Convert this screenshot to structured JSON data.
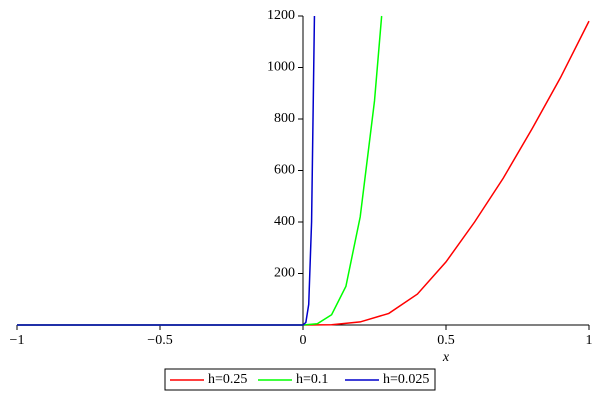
{
  "chart_data": {
    "type": "line",
    "xlabel": "x",
    "xlim": [
      -1,
      1
    ],
    "ylim": [
      0,
      1200
    ],
    "xticks": [
      {
        "value": -1,
        "label": "−1"
      },
      {
        "value": -0.5,
        "label": "−0.5"
      },
      0,
      0.5,
      1
    ],
    "yticks": [
      200,
      400,
      600,
      800,
      1000,
      1200
    ],
    "series": [
      {
        "name": "h=0.25",
        "color": "#ff0000",
        "x": [
          -1,
          0,
          0.1,
          0.2,
          0.3,
          0.4,
          0.5,
          0.6,
          0.7,
          0.8,
          0.9,
          1
        ],
        "values": [
          0,
          0,
          1,
          12,
          45,
          120,
          245,
          400,
          570,
          760,
          960,
          1180
        ]
      },
      {
        "name": "h=0.1",
        "color": "#00ff00",
        "x": [
          -1,
          0,
          0.05,
          0.1,
          0.15,
          0.2,
          0.25,
          0.275
        ],
        "values": [
          0,
          0,
          5,
          40,
          150,
          420,
          870,
          1200
        ]
      },
      {
        "name": "h=0.025",
        "color": "#0000cc",
        "x": [
          -1,
          0,
          0.01,
          0.02,
          0.03,
          0.04
        ],
        "values": [
          0,
          0,
          10,
          80,
          400,
          1200
        ]
      }
    ]
  }
}
